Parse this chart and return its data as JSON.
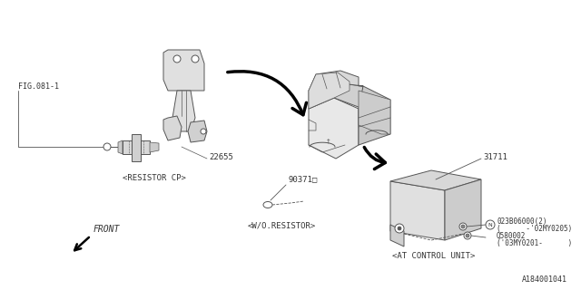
{
  "bg_color": "#ffffff",
  "line_color": "#555555",
  "fig_label": "FIG.081-1",
  "part_22655": "22655",
  "part_31711": "31711",
  "part_90371": "90371□",
  "part_N": "023B06000(2)",
  "part_N2": "(      -'02MY0205)",
  "part_Q": "Q580002",
  "part_Q2": "('03MY0201-      )",
  "label_resistor_cp": "<RESISTOR CP>",
  "label_wo_resistor": "<W/O.RESISTOR>",
  "label_at_control": "<AT CONTROL UNIT>",
  "label_front": "FRONT",
  "label_fig_id": "A184001041",
  "title_color": "#333333",
  "lw": 0.7,
  "car_color": "#e8e8e8",
  "part_color": "#e0e0e0"
}
